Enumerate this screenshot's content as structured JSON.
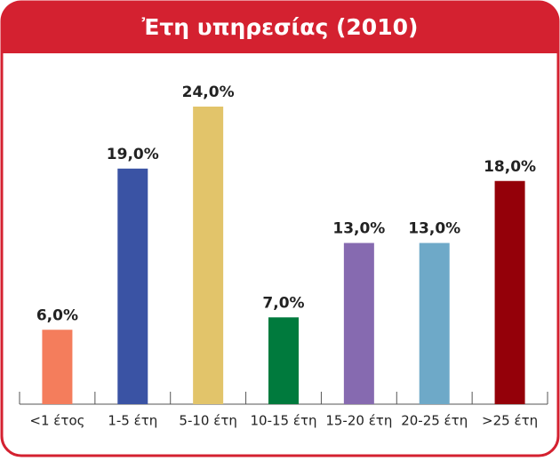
{
  "chart_data": {
    "type": "bar",
    "title": "Ἐτη υπηρεσίας (2010)",
    "categories": [
      "<1 έτος",
      "1-5 έτη",
      "5-10 έτη",
      "10-15 έτη",
      "15-20 έτη",
      "20-25 έτη",
      ">25 έτη"
    ],
    "values": [
      6,
      19,
      24,
      7,
      13,
      13,
      18
    ],
    "value_labels": [
      "6,0%",
      "19,0%",
      "24,0%",
      "7,0%",
      "13,0%",
      "13,0%",
      "18,0%"
    ],
    "colors": [
      "#f47d5c",
      "#3a53a4",
      "#e2c46a",
      "#007a3d",
      "#866ab0",
      "#6ea9c8",
      "#940009"
    ]
  }
}
